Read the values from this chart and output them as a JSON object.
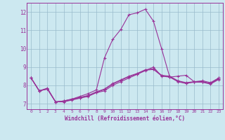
{
  "xlabel": "Windchill (Refroidissement éolien,°C)",
  "x_values": [
    0,
    1,
    2,
    3,
    4,
    5,
    6,
    7,
    8,
    9,
    10,
    11,
    12,
    13,
    14,
    15,
    16,
    17,
    18,
    19,
    20,
    21,
    22,
    23
  ],
  "line1": [
    8.4,
    7.7,
    7.8,
    7.1,
    7.1,
    7.2,
    7.3,
    7.4,
    7.6,
    7.7,
    8.0,
    8.2,
    8.4,
    8.6,
    8.8,
    9.0,
    8.5,
    8.45,
    8.2,
    8.1,
    8.2,
    8.2,
    8.1,
    8.4
  ],
  "line2": [
    8.4,
    7.7,
    7.85,
    7.1,
    7.15,
    7.25,
    7.4,
    7.55,
    7.75,
    9.5,
    10.5,
    11.05,
    11.85,
    11.95,
    12.15,
    11.5,
    10.0,
    8.45,
    8.5,
    8.55,
    8.2,
    8.25,
    8.15,
    8.4
  ],
  "line3": [
    8.4,
    7.7,
    7.8,
    7.1,
    7.15,
    7.25,
    7.35,
    7.45,
    7.65,
    7.8,
    8.1,
    8.3,
    8.5,
    8.65,
    8.85,
    8.9,
    8.55,
    8.5,
    8.25,
    8.15,
    8.2,
    8.2,
    8.1,
    8.35
  ],
  "line4": [
    8.4,
    7.7,
    7.82,
    7.1,
    7.12,
    7.22,
    7.32,
    7.42,
    7.62,
    7.77,
    8.07,
    8.27,
    8.47,
    8.62,
    8.82,
    8.87,
    8.52,
    8.47,
    8.22,
    8.12,
    8.17,
    8.17,
    8.07,
    8.32
  ],
  "line_color": "#993399",
  "bg_color": "#cce8f0",
  "grid_color": "#99bbcc",
  "text_color": "#993399",
  "ylim": [
    6.7,
    12.5
  ],
  "xlim": [
    -0.5,
    23.5
  ]
}
